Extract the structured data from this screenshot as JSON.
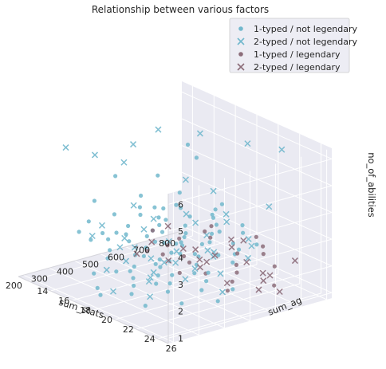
{
  "chart_data": {
    "type": "scatter",
    "projection": "3d",
    "title": "Relationship between various factors",
    "xlabel": "sum_stats",
    "ylabel": "sum_ag",
    "zlabel": "no_of_abilities",
    "xlim": [
      180,
      820
    ],
    "ylim": [
      13,
      27
    ],
    "zlim": [
      0.8,
      6.4
    ],
    "xticks": [
      200,
      300,
      400,
      500,
      600,
      700,
      800
    ],
    "yticks": [
      14,
      16,
      18,
      20,
      22,
      24,
      26
    ],
    "zticks": [
      1,
      2,
      3,
      4,
      5,
      6
    ],
    "grid": true,
    "legend_position": "top-right",
    "colors": {
      "pane": "#eaeaf2",
      "grid": "#ffffff",
      "not_legendary": "#72b8cd",
      "legendary": "#8c6d7a"
    },
    "series": [
      {
        "name": "1-typed / not legendary",
        "marker": "o",
        "color": "#72b8cd",
        "points": [
          [
            250,
            17,
            3
          ],
          [
            300,
            18,
            3
          ],
          [
            320,
            20,
            3
          ],
          [
            350,
            19,
            3
          ],
          [
            380,
            21,
            3
          ],
          [
            400,
            18,
            3
          ],
          [
            420,
            22,
            3
          ],
          [
            450,
            20,
            3
          ],
          [
            480,
            19,
            3
          ],
          [
            500,
            21,
            3
          ],
          [
            520,
            18,
            3
          ],
          [
            540,
            20,
            3
          ],
          [
            560,
            22,
            3
          ],
          [
            600,
            19,
            3
          ],
          [
            620,
            21,
            3
          ],
          [
            650,
            20,
            3
          ],
          [
            680,
            22,
            3
          ],
          [
            700,
            19,
            3
          ],
          [
            260,
            22,
            3
          ],
          [
            310,
            24,
            3
          ],
          [
            360,
            23,
            3
          ],
          [
            410,
            24,
            3
          ],
          [
            460,
            25,
            3
          ],
          [
            510,
            23,
            3
          ],
          [
            560,
            24,
            3
          ],
          [
            610,
            25,
            3
          ],
          [
            330,
            16,
            3
          ],
          [
            430,
            16,
            3
          ],
          [
            530,
            16,
            3
          ],
          [
            630,
            17,
            3
          ],
          [
            280,
            19,
            3
          ],
          [
            480,
            23,
            3
          ],
          [
            580,
            17,
            3
          ],
          [
            390,
            20,
            3
          ],
          [
            440,
            22,
            3
          ],
          [
            490,
            17,
            3
          ],
          [
            540,
            25,
            3
          ],
          [
            590,
            22,
            3
          ],
          [
            640,
            23,
            3
          ],
          [
            270,
            20,
            2
          ],
          [
            320,
            18,
            2
          ],
          [
            370,
            17,
            2
          ],
          [
            420,
            19,
            2
          ],
          [
            470,
            18,
            2
          ],
          [
            520,
            20,
            2
          ],
          [
            570,
            19,
            2
          ],
          [
            620,
            18,
            2
          ],
          [
            300,
            23,
            2
          ],
          [
            350,
            22,
            2
          ],
          [
            400,
            21,
            2
          ],
          [
            450,
            23,
            2
          ],
          [
            500,
            22,
            2
          ],
          [
            550,
            21,
            2
          ],
          [
            600,
            23,
            2
          ],
          [
            650,
            22,
            2
          ],
          [
            380,
            15,
            2
          ],
          [
            480,
            15,
            2
          ],
          [
            580,
            16,
            2
          ],
          [
            440,
            20,
            2
          ],
          [
            340,
            20,
            2
          ],
          [
            540,
            18,
            2
          ],
          [
            280,
            18,
            1
          ],
          [
            330,
            20,
            1
          ],
          [
            380,
            19,
            1
          ],
          [
            430,
            21,
            1
          ],
          [
            480,
            20,
            1
          ],
          [
            530,
            19,
            1
          ],
          [
            580,
            21,
            1
          ],
          [
            630,
            20,
            1
          ],
          [
            350,
            16,
            1
          ],
          [
            450,
            17,
            1
          ],
          [
            550,
            17,
            1
          ],
          [
            300,
            22,
            1
          ],
          [
            400,
            23,
            1
          ],
          [
            500,
            24,
            1
          ],
          [
            600,
            23,
            1
          ],
          [
            420,
            18,
            1
          ],
          [
            520,
            22,
            1
          ],
          [
            250,
            19,
            1
          ],
          [
            310,
            17,
            4
          ],
          [
            420,
            20,
            4
          ],
          [
            480,
            21,
            4
          ],
          [
            560,
            19,
            4
          ],
          [
            600,
            22,
            4
          ],
          [
            520,
            23,
            4
          ],
          [
            380,
            22,
            4
          ],
          [
            450,
            18,
            4
          ],
          [
            350,
            18,
            5
          ],
          [
            500,
            22,
            6
          ],
          [
            550,
            20,
            6
          ],
          [
            600,
            16,
            4
          ]
        ]
      },
      {
        "name": "2-typed / not legendary",
        "marker": "x",
        "color": "#72b8cd",
        "points": [
          [
            260,
            18,
            3
          ],
          [
            300,
            21,
            3
          ],
          [
            340,
            17,
            3
          ],
          [
            380,
            23,
            3
          ],
          [
            420,
            19,
            3
          ],
          [
            460,
            24,
            3
          ],
          [
            500,
            18,
            3
          ],
          [
            540,
            22,
            3
          ],
          [
            580,
            20,
            3
          ],
          [
            620,
            24,
            3
          ],
          [
            660,
            21,
            3
          ],
          [
            700,
            20,
            3
          ],
          [
            290,
            24,
            3
          ],
          [
            440,
            25,
            3
          ],
          [
            590,
            25,
            3
          ],
          [
            350,
            19,
            2
          ],
          [
            410,
            17,
            2
          ],
          [
            460,
            21,
            2
          ],
          [
            510,
            24,
            2
          ],
          [
            560,
            18,
            2
          ],
          [
            610,
            21,
            2
          ],
          [
            660,
            23,
            2
          ],
          [
            320,
            22,
            2
          ],
          [
            470,
            16,
            2
          ],
          [
            300,
            19,
            1
          ],
          [
            360,
            21,
            1
          ],
          [
            440,
            19,
            1
          ],
          [
            500,
            18,
            1
          ],
          [
            560,
            23,
            1
          ],
          [
            620,
            19,
            1
          ],
          [
            400,
            16,
            1
          ],
          [
            540,
            20,
            1
          ],
          [
            240,
            16,
            6
          ],
          [
            270,
            18,
            6
          ],
          [
            300,
            20,
            6
          ],
          [
            420,
            18,
            6
          ],
          [
            560,
            17,
            6
          ],
          [
            640,
            19,
            6
          ],
          [
            700,
            22,
            6
          ],
          [
            750,
            24,
            6
          ],
          [
            460,
            22,
            4
          ],
          [
            380,
            19,
            4
          ],
          [
            700,
            24,
            4
          ],
          [
            650,
            20,
            4
          ],
          [
            500,
            21,
            5
          ],
          [
            280,
            23,
            3
          ]
        ]
      },
      {
        "name": "1-typed / legendary",
        "marker": "o",
        "color": "#8c6d7a",
        "points": [
          [
            580,
            16,
            2
          ],
          [
            600,
            18,
            2
          ],
          [
            620,
            20,
            1
          ],
          [
            640,
            22,
            1
          ],
          [
            660,
            17,
            1
          ],
          [
            680,
            19,
            2
          ],
          [
            700,
            21,
            1
          ],
          [
            720,
            23,
            2
          ],
          [
            600,
            15,
            1
          ],
          [
            650,
            24,
            3
          ],
          [
            680,
            25,
            2
          ],
          [
            560,
            19,
            1
          ],
          [
            700,
            18,
            2
          ],
          [
            620,
            16,
            1
          ],
          [
            740,
            20,
            1
          ],
          [
            660,
            22,
            2
          ],
          [
            580,
            23,
            1
          ],
          [
            720,
            24,
            1
          ],
          [
            640,
            18,
            1
          ],
          [
            760,
            22,
            2
          ],
          [
            600,
            21,
            3
          ],
          [
            680,
            15,
            1
          ]
        ]
      },
      {
        "name": "2-typed / legendary",
        "marker": "x",
        "color": "#8c6d7a",
        "points": [
          [
            560,
            15,
            1
          ],
          [
            600,
            17,
            1
          ],
          [
            640,
            19,
            1
          ],
          [
            680,
            21,
            2
          ],
          [
            720,
            23,
            1
          ],
          [
            760,
            25,
            2
          ],
          [
            580,
            20,
            2
          ],
          [
            620,
            22,
            1
          ],
          [
            660,
            24,
            1
          ],
          [
            700,
            16,
            1
          ],
          [
            740,
            18,
            1
          ],
          [
            780,
            20,
            1
          ],
          [
            600,
            24,
            3
          ],
          [
            640,
            16,
            2
          ],
          [
            680,
            18,
            1
          ],
          [
            720,
            20,
            2
          ],
          [
            760,
            22,
            1
          ],
          [
            620,
            26,
            2
          ],
          [
            700,
            25,
            1
          ],
          [
            660,
            14,
            1
          ],
          [
            540,
            22,
            2
          ]
        ]
      }
    ]
  }
}
